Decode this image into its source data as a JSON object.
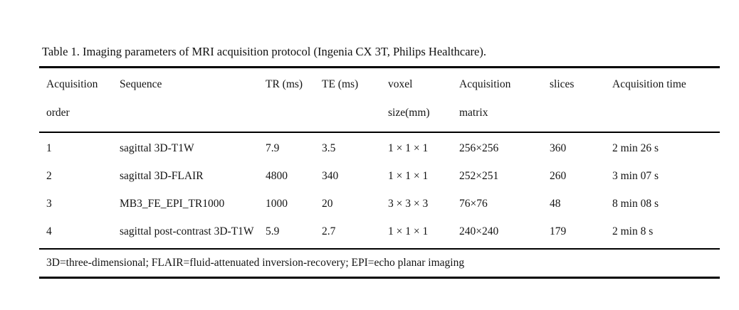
{
  "document": {
    "caption": "Table 1. Imaging parameters of MRI acquisition protocol (Ingenia CX 3T, Philips Healthcare)."
  },
  "table": {
    "headers": [
      "Acquisition\norder",
      "Sequence",
      "TR (ms)",
      "TE (ms)",
      "voxel\nsize(mm)",
      "Acquisition\nmatrix",
      "slices",
      "Acquisition time"
    ],
    "rows": [
      [
        "1",
        "sagittal 3D-T1W",
        "7.9",
        "3.5",
        "1 × 1 × 1",
        "256×256",
        "360",
        "2 min 26 s"
      ],
      [
        "2",
        "sagittal 3D-FLAIR",
        "4800",
        "340",
        "1 × 1 × 1",
        "252×251",
        "260",
        "3 min 07 s"
      ],
      [
        "3",
        "MB3_FE_EPI_TR1000",
        "1000",
        "20",
        "3 × 3 × 3",
        "76×76",
        "48",
        "8 min 08 s"
      ],
      [
        "4",
        "sagittal post-contrast 3D-T1W",
        "5.9",
        "2.7",
        "1 × 1 × 1",
        "240×240",
        "179",
        "2 min 8 s"
      ]
    ],
    "footnote": "3D=three-dimensional; FLAIR=fluid-attenuated inversion-recovery; EPI=echo planar imaging"
  },
  "colors": {
    "background": "#ffffff",
    "text": "#141414",
    "rule": "#000000"
  }
}
